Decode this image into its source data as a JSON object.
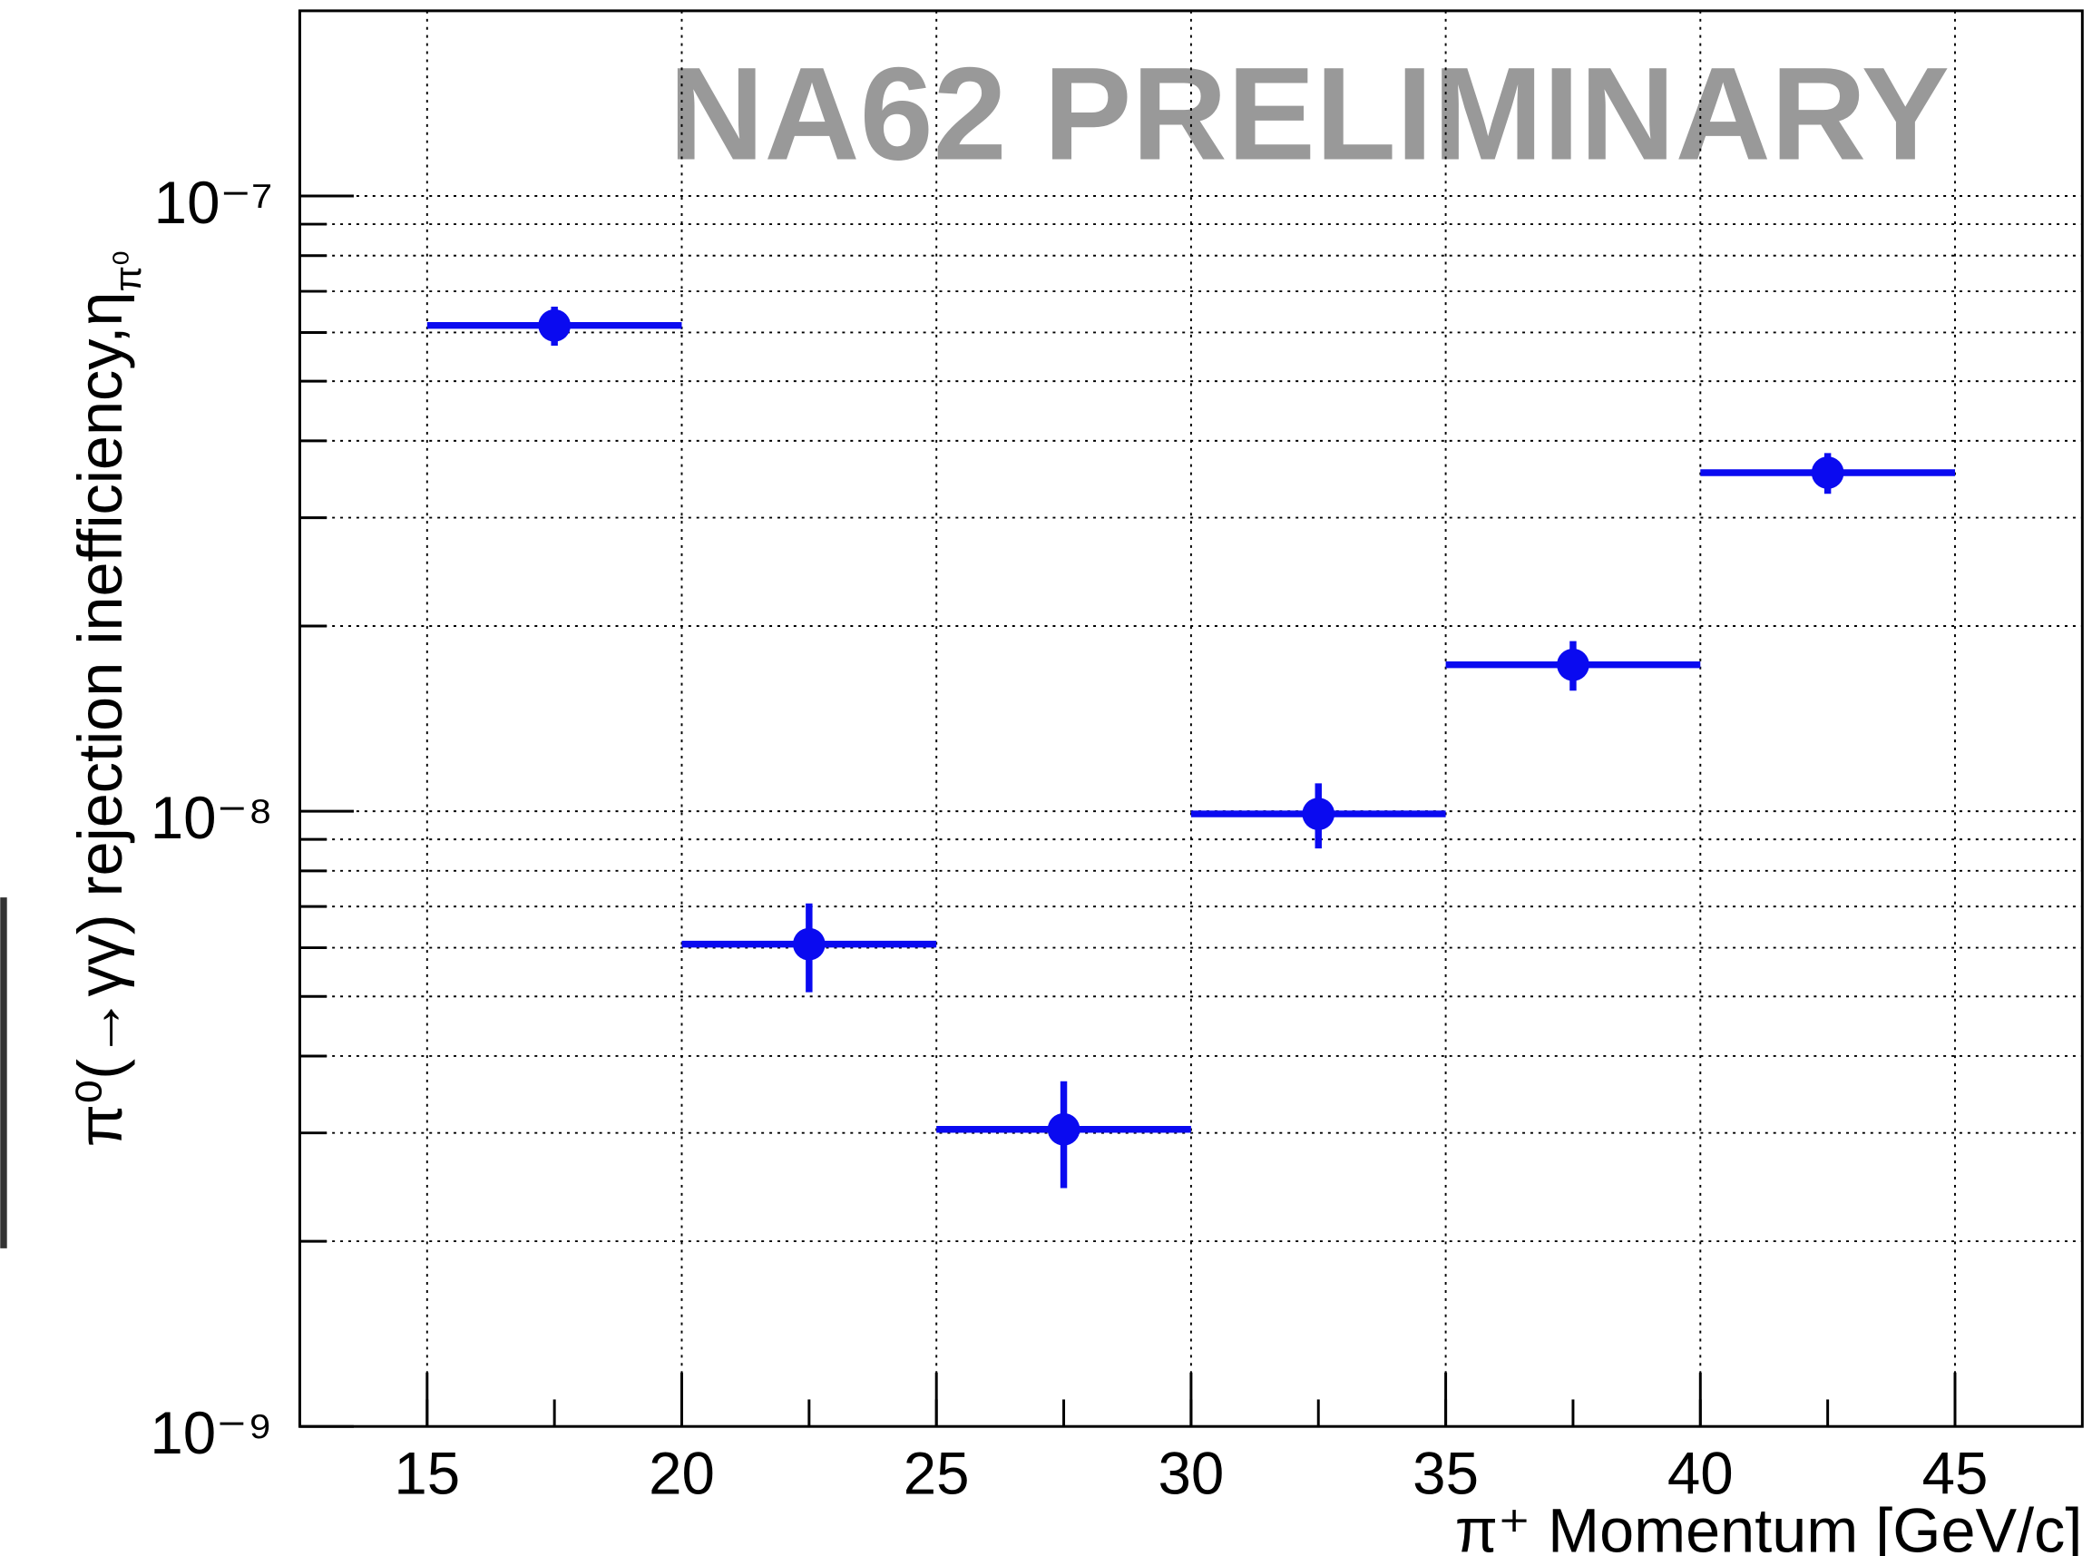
{
  "chart_data": {
    "type": "scatter",
    "annotation": "NA62 PRELIMINARY",
    "x_label": "π⁺ Momentum [GeV/c]",
    "y_label": "π⁰(→γγ) rejection inefficiency,η",
    "y_label_subscript": "π⁰",
    "series": [
      {
        "color": "#0a0af0",
        "x": [
          17.5,
          22.5,
          27.5,
          32.5,
          37.5,
          42.5
        ],
        "xerr": [
          2.5,
          2.5,
          2.5,
          2.5,
          2.5,
          2.5
        ],
        "y": [
          6.16e-08,
          6.08e-09,
          3.04e-09,
          9.9e-09,
          1.73e-08,
          3.55e-08
        ],
        "yerr": [
          4.5e-09,
          1e-09,
          6e-10,
          1.2e-09,
          1.6e-09,
          2.7e-09
        ]
      }
    ],
    "xlim": [
      12.5,
      47.5
    ],
    "xticks": [
      15,
      20,
      25,
      30,
      35,
      40,
      45
    ],
    "ylim": [
      1e-09,
      2e-07
    ],
    "log_y": true,
    "yticks": [
      {
        "value": 1e-09,
        "label": "10⁻⁹"
      },
      {
        "value": 1e-08,
        "label": "10⁻⁸"
      },
      {
        "value": 1e-07,
        "label": "10⁻⁷"
      }
    ],
    "grid": true
  }
}
